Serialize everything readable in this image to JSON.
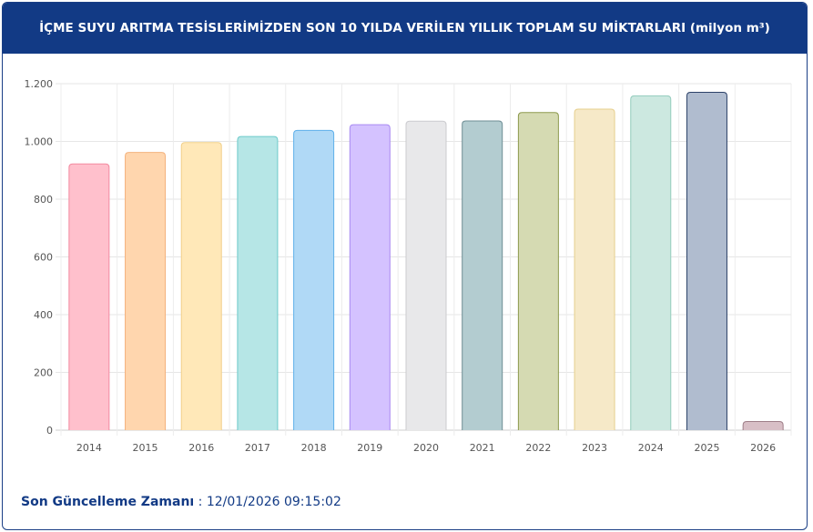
{
  "header": {
    "title": "İÇME SUYU ARITMA TESİSLERİMİZDEN SON 10 YILDA VERİLEN YILLIK TOPLAM SU MİKTARLARI (milyon m³)"
  },
  "footer": {
    "label": "Son Güncelleme Zamanı",
    "separator": " : ",
    "timestamp": "12/01/2026 09:15:02"
  },
  "chart_data": {
    "type": "bar",
    "categories": [
      "2014",
      "2015",
      "2016",
      "2017",
      "2018",
      "2019",
      "2020",
      "2021",
      "2022",
      "2023",
      "2024",
      "2025",
      "2026"
    ],
    "values": [
      922,
      962,
      996,
      1017,
      1038,
      1058,
      1070,
      1071,
      1100,
      1112,
      1158,
      1170,
      30
    ],
    "ylim": [
      0,
      1200
    ],
    "yticks": [
      0,
      200,
      400,
      600,
      800,
      1000,
      1200
    ],
    "ytick_labels": [
      "0",
      "200",
      "400",
      "600",
      "800",
      "1.000",
      "1.200"
    ],
    "grid": true,
    "fills": [
      "#ffc0cc",
      "#ffd6ae",
      "#ffe8b8",
      "#b6e6e6",
      "#b0d9f6",
      "#d4c2ff",
      "#e8e8ea",
      "#b3ccd0",
      "#d5dab2",
      "#f6e9c8",
      "#cce8e0",
      "#b0bccf",
      "#d8bfc6"
    ],
    "borders": [
      "#f38aa0",
      "#f4b27d",
      "#f1d08a",
      "#6ccaca",
      "#5fb0ea",
      "#a98af2",
      "#cbcbcf",
      "#6e8e95",
      "#8e9a4e",
      "#e6cf8e",
      "#94ccbd",
      "#2c4168",
      "#9e7e88"
    ]
  }
}
